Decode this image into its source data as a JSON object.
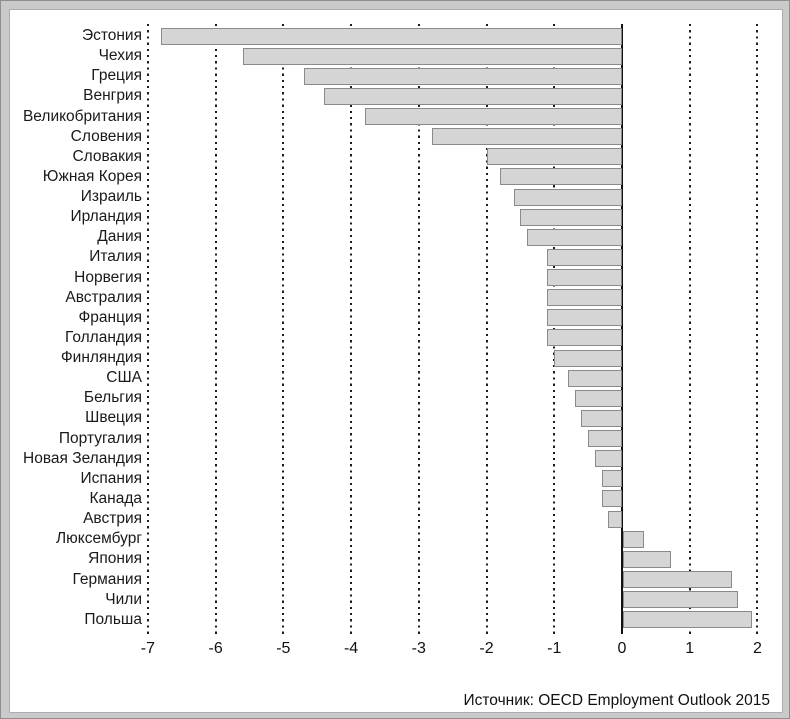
{
  "source_note": "Источник: OECD Employment Outlook 2015",
  "chart_data": {
    "type": "bar",
    "orientation": "horizontal",
    "title": "",
    "xlabel": "",
    "ylabel": "",
    "categories": [
      "Эстония",
      "Чехия",
      "Греция",
      "Венгрия",
      "Великобритания",
      "Словения",
      "Словакия",
      "Южная Корея",
      "Израиль",
      "Ирландия",
      "Дания",
      "Италия",
      "Норвегия",
      "Австралия",
      "Франция",
      "Голландия",
      "Финляндия",
      "США",
      "Бельгия",
      "Швеция",
      "Португалия",
      "Новая Зеландия",
      "Испания",
      "Канада",
      "Австрия",
      "Люксембург",
      "Япония",
      "Германия",
      "Чили",
      "Польша"
    ],
    "values": [
      -6.8,
      -5.6,
      -4.7,
      -4.4,
      -3.8,
      -2.8,
      -2.0,
      -1.8,
      -1.6,
      -1.5,
      -1.4,
      -1.1,
      -1.1,
      -1.1,
      -1.1,
      -1.1,
      -1.0,
      -0.8,
      -0.7,
      -0.6,
      -0.5,
      -0.4,
      -0.3,
      -0.3,
      -0.2,
      0.3,
      0.7,
      1.6,
      1.7,
      1.9
    ],
    "xlim": [
      -7,
      2
    ],
    "x_ticks": [
      "-7",
      "-6",
      "-5",
      "-4",
      "-3",
      "-2",
      "-1",
      "0",
      "1",
      "2"
    ],
    "grid": "dashed-vertical-at-each-tick",
    "legend": "none",
    "bar_color": "#d5d5d5",
    "bar_border_color": "#8a8a8a",
    "zero_line_color": "#121212",
    "text_color": "#1a1a1a"
  }
}
